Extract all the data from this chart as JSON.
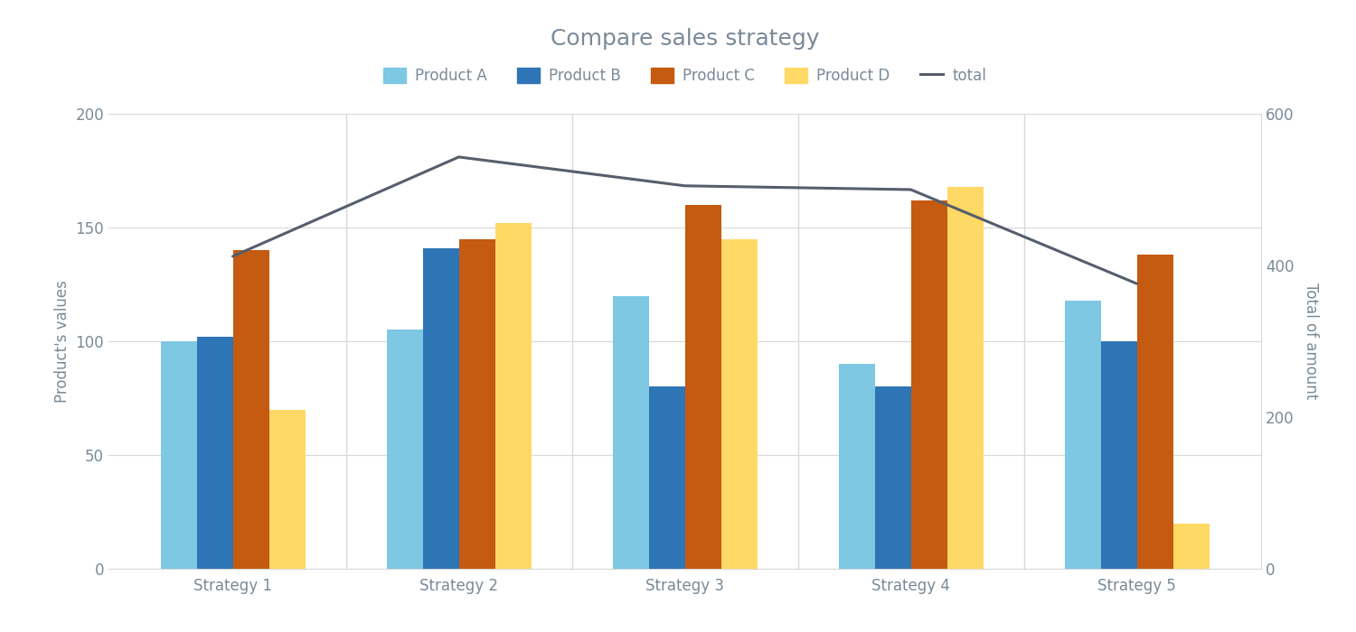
{
  "title": "Compare sales strategy",
  "ylabel_left": "Product's values",
  "ylabel_right": "Total of amount",
  "categories": [
    "Strategy 1",
    "Strategy 2",
    "Strategy 3",
    "Strategy 4",
    "Strategy 5"
  ],
  "product_a": [
    100,
    105,
    120,
    90,
    118
  ],
  "product_b": [
    102,
    141,
    80,
    80,
    100
  ],
  "product_c": [
    140,
    145,
    160,
    162,
    138
  ],
  "product_d": [
    70,
    152,
    145,
    168,
    20
  ],
  "total": [
    412,
    543,
    505,
    500,
    376
  ],
  "color_a": "#7EC8E3",
  "color_b": "#2E75B6",
  "color_c": "#C55A11",
  "color_d": "#FFD966",
  "color_total": "#555f6b",
  "ylim_left": [
    0,
    200
  ],
  "ylim_right": [
    0,
    600
  ],
  "title_fontsize": 18,
  "label_fontsize": 12,
  "tick_fontsize": 12,
  "background_color": "#ffffff",
  "bar_width": 0.16,
  "legend_labels": [
    "Product A",
    "Product B",
    "Product C",
    "Product D",
    "total"
  ],
  "yticks_left": [
    0,
    50,
    100,
    150,
    200
  ],
  "yticks_right": [
    0,
    200,
    400,
    600
  ],
  "grid_color": "#d8d8d8",
  "text_color": "#7a8a99"
}
